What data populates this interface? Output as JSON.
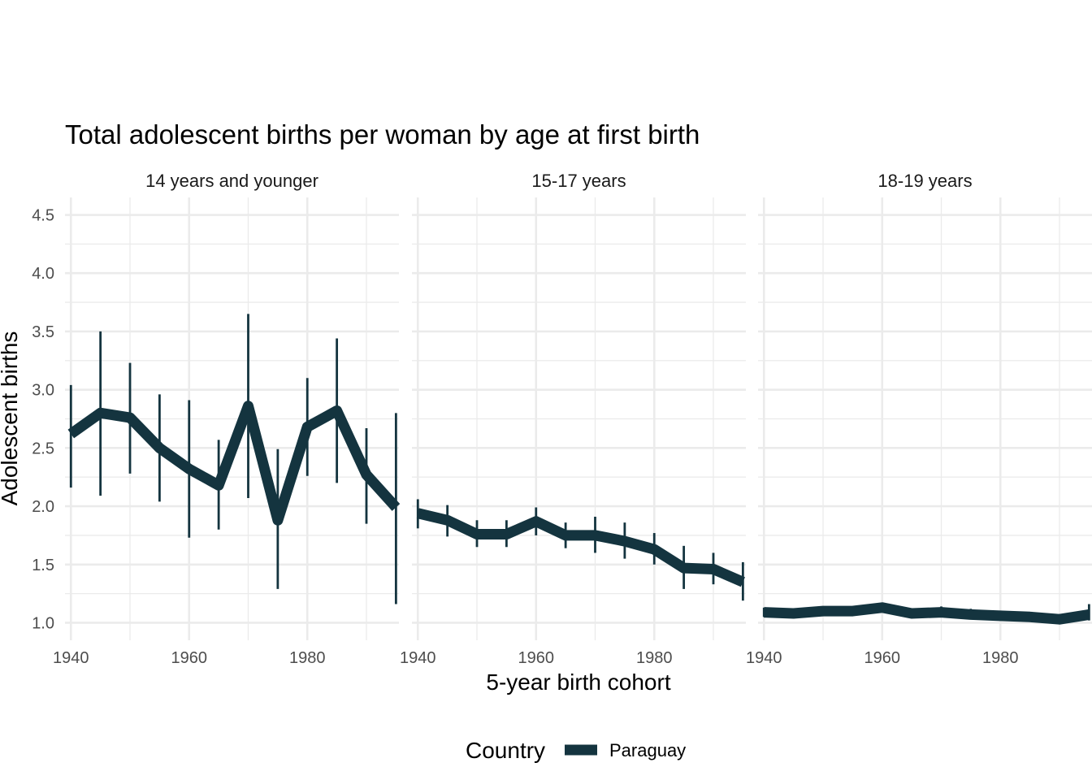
{
  "chart_data": {
    "type": "line",
    "title": "Total adolescent births per woman by age at first birth",
    "xlabel": "5-year birth cohort",
    "ylabel": "Adolescent births",
    "ylim": [
      0.85,
      4.65
    ],
    "yticks": [
      1.0,
      1.5,
      2.0,
      2.5,
      3.0,
      3.5,
      4.0,
      4.5
    ],
    "ytick_labels": [
      "1.0",
      "1.5",
      "2.0",
      "2.5",
      "3.0",
      "3.5",
      "4.0",
      "4.5"
    ],
    "xlim": [
      1939,
      1995.5
    ],
    "xticks": [
      1940,
      1960,
      1980
    ],
    "xtick_labels": [
      "1940",
      "1960",
      "1980"
    ],
    "grid": true,
    "legend": {
      "title": "Country",
      "position": "bottom",
      "entries": [
        {
          "label": "Paraguay",
          "color": "#14343f"
        }
      ]
    },
    "series_color": "#14343f",
    "grid_color": "#ebebeb",
    "panels": [
      {
        "label": "14 years and younger",
        "x": [
          1940,
          1945,
          1950,
          1955,
          1960,
          1965,
          1970,
          1975,
          1980,
          1985,
          1990,
          1995
        ],
        "y": [
          2.62,
          2.8,
          2.76,
          2.5,
          2.32,
          2.18,
          2.86,
          1.88,
          2.68,
          2.82,
          2.27,
          1.99
        ],
        "lower": [
          2.16,
          2.09,
          2.28,
          2.04,
          1.73,
          1.8,
          2.07,
          1.29,
          2.26,
          2.2,
          1.85,
          1.16
        ],
        "upper": [
          3.04,
          3.5,
          3.23,
          2.96,
          2.91,
          2.57,
          3.65,
          2.49,
          3.1,
          3.44,
          2.67,
          2.8
        ]
      },
      {
        "label": "15-17 years",
        "x": [
          1940,
          1945,
          1950,
          1955,
          1960,
          1965,
          1970,
          1975,
          1980,
          1985,
          1990,
          1995
        ],
        "y": [
          1.94,
          1.88,
          1.76,
          1.76,
          1.87,
          1.75,
          1.75,
          1.7,
          1.63,
          1.47,
          1.46,
          1.35
        ],
        "lower": [
          1.81,
          1.74,
          1.65,
          1.65,
          1.75,
          1.64,
          1.6,
          1.55,
          1.5,
          1.29,
          1.33,
          1.19
        ],
        "upper": [
          2.06,
          2.01,
          1.88,
          1.88,
          1.99,
          1.86,
          1.91,
          1.86,
          1.77,
          1.66,
          1.6,
          1.52
        ]
      },
      {
        "label": "18-19 years",
        "x": [
          1940,
          1945,
          1950,
          1955,
          1960,
          1965,
          1970,
          1975,
          1980,
          1985,
          1990,
          1995
        ],
        "y": [
          1.09,
          1.08,
          1.1,
          1.1,
          1.13,
          1.08,
          1.09,
          1.07,
          1.06,
          1.05,
          1.03,
          1.07
        ],
        "lower": [
          1.05,
          1.04,
          1.07,
          1.07,
          1.09,
          1.05,
          1.05,
          1.03,
          1.03,
          1.02,
          1.01,
          1.02
        ],
        "upper": [
          1.13,
          1.12,
          1.13,
          1.13,
          1.17,
          1.11,
          1.14,
          1.12,
          1.1,
          1.09,
          1.06,
          1.16
        ]
      }
    ]
  }
}
